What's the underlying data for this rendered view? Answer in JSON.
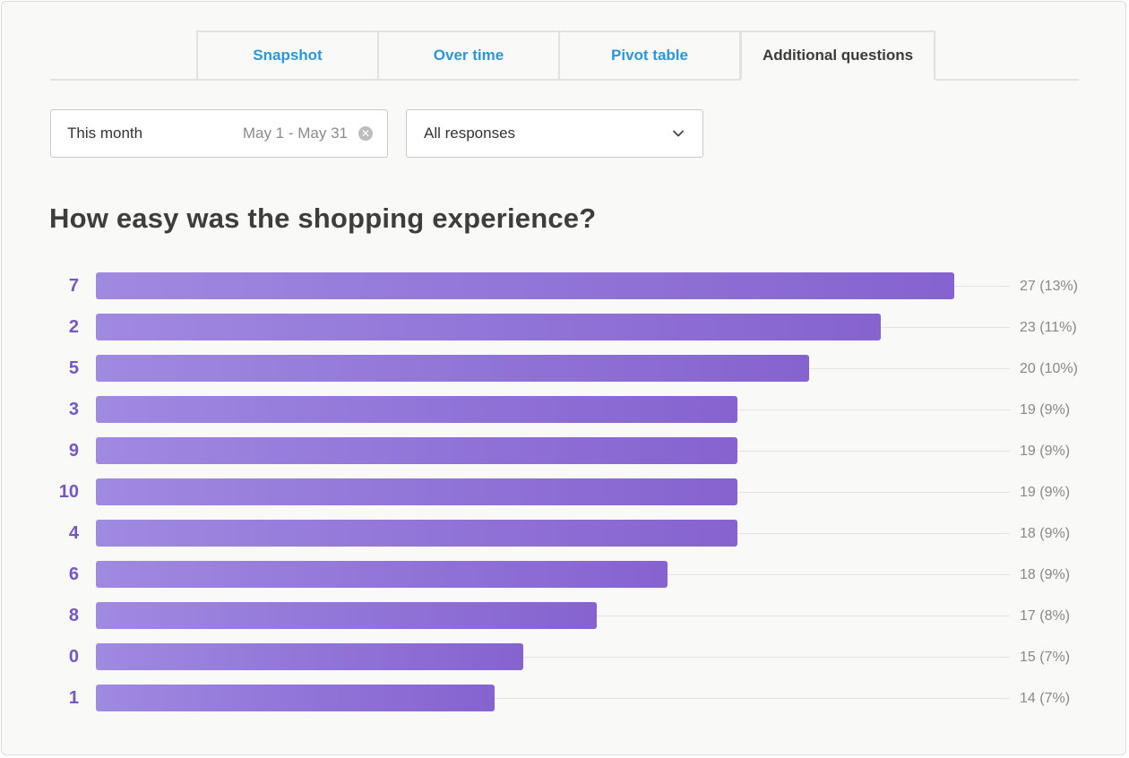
{
  "tabs": [
    {
      "label": "Snapshot",
      "active": false
    },
    {
      "label": "Over time",
      "active": false
    },
    {
      "label": "Pivot table",
      "active": false
    },
    {
      "label": "Additional questions",
      "active": true
    }
  ],
  "filters": {
    "date": {
      "label": "This month",
      "range": "May 1 - May 31",
      "clear_icon": "clear-circle-icon"
    },
    "responses": {
      "selected": "All responses",
      "icon": "chevron-down-icon"
    }
  },
  "question": "How easy was the shopping experience?",
  "colors": {
    "accent": "#8663d0",
    "label": "#7556c2",
    "tab_link": "#2b97db"
  },
  "chart_data": {
    "type": "bar",
    "orientation": "horizontal",
    "title": "How easy was the shopping experience?",
    "categories": [
      "7",
      "2",
      "5",
      "3",
      "9",
      "10",
      "4",
      "6",
      "8",
      "0",
      "1"
    ],
    "values": [
      27,
      23,
      20,
      19,
      19,
      19,
      18,
      18,
      17,
      15,
      14
    ],
    "value_labels": [
      "27 (13%)",
      "23 (11%)",
      "20 (10%)",
      "19 (9%)",
      "19 (9%)",
      "19 (9%)",
      "18 (9%)",
      "18 (9%)",
      "17 (8%)",
      "15 (7%)",
      "14 (7%)"
    ],
    "bar_widths": [
      0.939,
      0.859,
      0.78,
      0.702,
      0.702,
      0.702,
      0.702,
      0.625,
      0.548,
      0.468,
      0.436
    ]
  }
}
